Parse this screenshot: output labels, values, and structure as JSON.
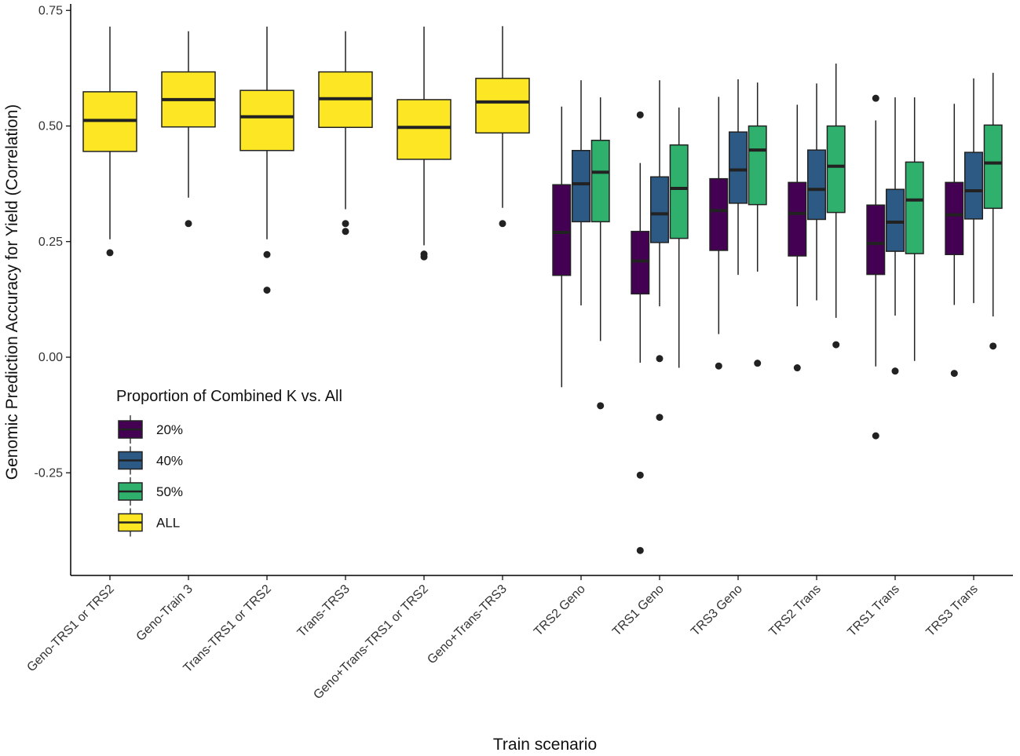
{
  "chart_data": {
    "type": "boxplot",
    "title": "",
    "xlabel": "Train scenario",
    "ylabel": "Genomic Prediction Accuracy for Yield (Correlation)",
    "ylim": [
      -0.47,
      0.76
    ],
    "yticks": [
      0.75,
      0.5,
      0.25,
      0.0,
      -0.25
    ],
    "ytick_labels": [
      "0.75",
      "0.50",
      "0.25",
      "0.00",
      "-0.25"
    ],
    "categories": [
      "Geno-TRS1 or TRS2",
      "Geno-Train 3",
      "Trans-TRS1 or TRS2",
      "Trans-TRS3",
      "Geno+Trans-TRS1 or TRS2",
      "Geno+Trans-TRS3",
      "TRS2 Geno",
      "TRS1 Geno",
      "TRS3 Geno",
      "TRS2 Trans",
      "TRS1 Trans",
      "TRS3 Trans"
    ],
    "legend": {
      "title": "Proportion of Combined K vs. All",
      "position": "bottom-left",
      "entries": [
        {
          "key": "p20",
          "label": "20%",
          "color": "#440154"
        },
        {
          "key": "p40",
          "label": "40%",
          "color": "#2c5a85"
        },
        {
          "key": "p50",
          "label": "50%",
          "color": "#2fb06c"
        },
        {
          "key": "all",
          "label": "ALL",
          "color": "#fde725"
        }
      ]
    },
    "groups": [
      {
        "category": "Geno-TRS1 or TRS2",
        "boxes": [
          {
            "series": "all",
            "whisker_low": 0.255,
            "q1": 0.445,
            "median": 0.512,
            "q3": 0.574,
            "whisker_high": 0.715,
            "outliers": [
              0.226
            ]
          }
        ]
      },
      {
        "category": "Geno-Train 3",
        "boxes": [
          {
            "series": "all",
            "whisker_low": 0.345,
            "q1": 0.498,
            "median": 0.557,
            "q3": 0.617,
            "whisker_high": 0.705,
            "outliers": [
              0.289
            ]
          }
        ]
      },
      {
        "category": "Trans-TRS1 or TRS2",
        "boxes": [
          {
            "series": "all",
            "whisker_low": 0.255,
            "q1": 0.447,
            "median": 0.52,
            "q3": 0.577,
            "whisker_high": 0.715,
            "outliers": [
              0.222,
              0.145
            ]
          }
        ]
      },
      {
        "category": "Trans-TRS3",
        "boxes": [
          {
            "series": "all",
            "whisker_low": 0.32,
            "q1": 0.497,
            "median": 0.559,
            "q3": 0.617,
            "whisker_high": 0.705,
            "outliers": [
              0.289,
              0.272
            ]
          }
        ]
      },
      {
        "category": "Geno+Trans-TRS1 or TRS2",
        "boxes": [
          {
            "series": "all",
            "whisker_low": 0.242,
            "q1": 0.428,
            "median": 0.497,
            "q3": 0.557,
            "whisker_high": 0.715,
            "outliers": [
              0.223,
              0.217
            ]
          }
        ]
      },
      {
        "category": "Geno+Trans-TRS3",
        "boxes": [
          {
            "series": "all",
            "whisker_low": 0.323,
            "q1": 0.485,
            "median": 0.552,
            "q3": 0.603,
            "whisker_high": 0.716,
            "outliers": [
              0.289
            ]
          }
        ]
      },
      {
        "category": "TRS2 Geno",
        "boxes": [
          {
            "series": "p20",
            "whisker_low": -0.065,
            "q1": 0.177,
            "median": 0.27,
            "q3": 0.373,
            "whisker_high": 0.542,
            "outliers": []
          },
          {
            "series": "p40",
            "whisker_low": 0.112,
            "q1": 0.293,
            "median": 0.375,
            "q3": 0.447,
            "whisker_high": 0.599,
            "outliers": []
          },
          {
            "series": "p50",
            "whisker_low": 0.035,
            "q1": 0.293,
            "median": 0.4,
            "q3": 0.469,
            "whisker_high": 0.562,
            "outliers": [
              -0.105
            ]
          }
        ]
      },
      {
        "category": "TRS1 Geno",
        "boxes": [
          {
            "series": "p20",
            "whisker_low": -0.012,
            "q1": 0.137,
            "median": 0.208,
            "q3": 0.272,
            "whisker_high": 0.42,
            "outliers": [
              0.524,
              -0.255,
              -0.418
            ]
          },
          {
            "series": "p40",
            "whisker_low": 0.11,
            "q1": 0.248,
            "median": 0.31,
            "q3": 0.39,
            "whisker_high": 0.599,
            "outliers": [
              -0.003,
              -0.13
            ]
          },
          {
            "series": "p50",
            "whisker_low": -0.023,
            "q1": 0.257,
            "median": 0.365,
            "q3": 0.459,
            "whisker_high": 0.54,
            "outliers": []
          }
        ]
      },
      {
        "category": "TRS3 Geno",
        "boxes": [
          {
            "series": "p20",
            "whisker_low": 0.05,
            "q1": 0.231,
            "median": 0.317,
            "q3": 0.386,
            "whisker_high": 0.563,
            "outliers": [
              -0.019
            ]
          },
          {
            "series": "p40",
            "whisker_low": 0.178,
            "q1": 0.333,
            "median": 0.405,
            "q3": 0.487,
            "whisker_high": 0.601,
            "outliers": []
          },
          {
            "series": "p50",
            "whisker_low": 0.185,
            "q1": 0.33,
            "median": 0.448,
            "q3": 0.5,
            "whisker_high": 0.594,
            "outliers": [
              -0.013
            ]
          }
        ]
      },
      {
        "category": "TRS2 Trans",
        "boxes": [
          {
            "series": "p20",
            "whisker_low": 0.11,
            "q1": 0.219,
            "median": 0.311,
            "q3": 0.378,
            "whisker_high": 0.546,
            "outliers": [
              -0.023
            ]
          },
          {
            "series": "p40",
            "whisker_low": 0.123,
            "q1": 0.298,
            "median": 0.363,
            "q3": 0.448,
            "whisker_high": 0.592,
            "outliers": []
          },
          {
            "series": "p50",
            "whisker_low": 0.085,
            "q1": 0.313,
            "median": 0.413,
            "q3": 0.5,
            "whisker_high": 0.635,
            "outliers": [
              0.027
            ]
          }
        ]
      },
      {
        "category": "TRS1 Trans",
        "boxes": [
          {
            "series": "p20",
            "whisker_low": -0.02,
            "q1": 0.179,
            "median": 0.246,
            "q3": 0.329,
            "whisker_high": 0.512,
            "outliers": [
              0.56,
              -0.17
            ]
          },
          {
            "series": "p40",
            "whisker_low": 0.09,
            "q1": 0.229,
            "median": 0.292,
            "q3": 0.363,
            "whisker_high": 0.562,
            "outliers": [
              -0.03
            ]
          },
          {
            "series": "p50",
            "whisker_low": -0.008,
            "q1": 0.224,
            "median": 0.34,
            "q3": 0.422,
            "whisker_high": 0.562,
            "outliers": []
          }
        ]
      },
      {
        "category": "TRS3 Trans",
        "boxes": [
          {
            "series": "p20",
            "whisker_low": 0.113,
            "q1": 0.222,
            "median": 0.308,
            "q3": 0.378,
            "whisker_high": 0.548,
            "outliers": [
              -0.035
            ]
          },
          {
            "series": "p40",
            "whisker_low": 0.117,
            "q1": 0.299,
            "median": 0.36,
            "q3": 0.443,
            "whisker_high": 0.603,
            "outliers": []
          },
          {
            "series": "p50",
            "whisker_low": 0.088,
            "q1": 0.322,
            "median": 0.42,
            "q3": 0.502,
            "whisker_high": 0.615,
            "outliers": [
              0.024
            ]
          }
        ]
      }
    ]
  }
}
